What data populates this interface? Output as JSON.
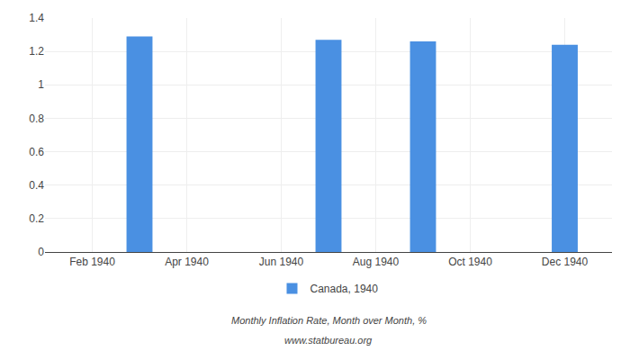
{
  "chart_data": {
    "type": "bar",
    "x": [
      3,
      7,
      9,
      12
    ],
    "series": [
      {
        "name": "Canada, 1940",
        "color": "#4a90e2",
        "values": [
          1.29,
          1.27,
          1.26,
          1.24
        ]
      }
    ],
    "xlim": [
      1,
      13
    ],
    "xticks": [
      {
        "value": 2,
        "label": "Feb 1940"
      },
      {
        "value": 4,
        "label": "Apr 1940"
      },
      {
        "value": 6,
        "label": "Jun 1940"
      },
      {
        "value": 8,
        "label": "Aug 1940"
      },
      {
        "value": 10,
        "label": "Oct 1940"
      },
      {
        "value": 12,
        "label": "Dec 1940"
      }
    ],
    "ylim": [
      0,
      1.4
    ],
    "yticks": [
      0,
      0.2,
      0.4,
      0.6,
      0.8,
      1,
      1.2,
      1.4
    ],
    "grid": true,
    "legend": "bottom",
    "annotations": [
      "Monthly Inflation Rate, Month over Month, %",
      "www.statbureau.org"
    ]
  }
}
